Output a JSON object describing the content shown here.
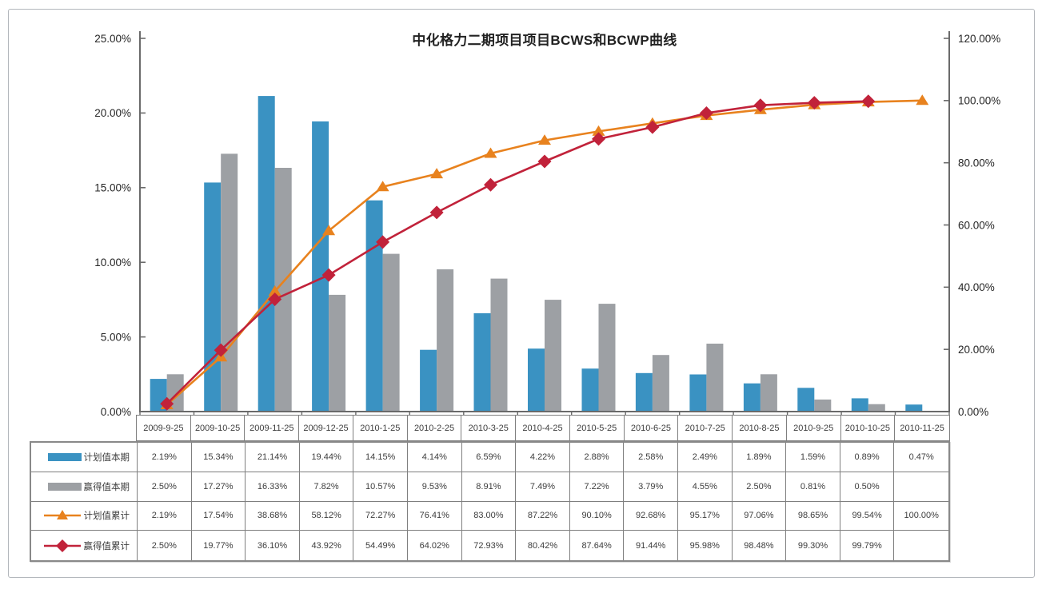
{
  "frame": {
    "background": "#ffffff",
    "border_color": "#b2b6bb"
  },
  "chart_data": {
    "type": "combo-bar-line",
    "title": "中化格力二期项目项目BCWS和BCWP曲线",
    "grid": false,
    "legend_position": "table-rows-left",
    "categories": [
      "2009-9-25",
      "2009-10-25",
      "2009-11-25",
      "2009-12-25",
      "2010-1-25",
      "2010-2-25",
      "2010-3-25",
      "2010-4-25",
      "2010-5-25",
      "2010-6-25",
      "2010-7-25",
      "2010-8-25",
      "2010-9-25",
      "2010-10-25",
      "2010-11-25"
    ],
    "series": [
      {
        "name": "计划值本期",
        "type": "bar",
        "axis": "left",
        "color": "#3a92c2",
        "marker": "none",
        "values": [
          2.19,
          15.34,
          21.14,
          19.44,
          14.15,
          4.14,
          6.59,
          4.22,
          2.88,
          2.58,
          2.49,
          1.89,
          1.59,
          0.89,
          0.47
        ]
      },
      {
        "name": "赢得值本期",
        "type": "bar",
        "axis": "left",
        "color": "#9da0a4",
        "marker": "none",
        "values": [
          2.5,
          17.27,
          16.33,
          7.82,
          10.57,
          9.53,
          8.91,
          7.49,
          7.22,
          3.79,
          4.55,
          2.5,
          0.81,
          0.5,
          null
        ]
      },
      {
        "name": "计划值累计",
        "type": "line",
        "axis": "right",
        "color": "#e8821e",
        "marker": "triangle",
        "values": [
          2.19,
          17.54,
          38.68,
          58.12,
          72.27,
          76.41,
          83.0,
          87.22,
          90.1,
          92.68,
          95.17,
          97.06,
          98.65,
          99.54,
          100.0
        ]
      },
      {
        "name": "赢得值累计",
        "type": "line",
        "axis": "right",
        "color": "#c1223a",
        "marker": "diamond",
        "values": [
          2.5,
          19.77,
          36.1,
          43.92,
          54.49,
          64.02,
          72.93,
          80.42,
          87.64,
          91.44,
          95.98,
          98.48,
          99.3,
          99.79,
          null
        ]
      }
    ],
    "left_axis": {
      "min": 0,
      "max": 25,
      "step": 5,
      "tick_labels": [
        "0.00%",
        "5.00%",
        "10.00%",
        "15.00%",
        "20.00%",
        "25.00%"
      ]
    },
    "right_axis": {
      "min": 0,
      "max": 120,
      "step": 20,
      "tick_labels": [
        "0.00%",
        "20.00%",
        "40.00%",
        "60.00%",
        "80.00%",
        "100.00%",
        "120.00%"
      ]
    },
    "axis_color": "#6a6a6a",
    "label_color": "#262626"
  },
  "table": {
    "value_format": "percent-2dp",
    "empty_cell": ""
  }
}
